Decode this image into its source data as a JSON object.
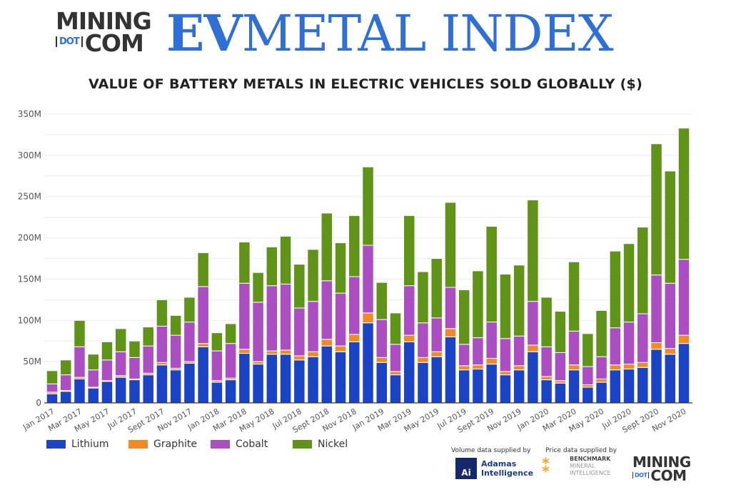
{
  "header": {
    "logo_line1": "MINING",
    "logo_dot": "DOT",
    "logo_line2": "COM",
    "ev": "EV",
    "metal_index": "METAL INDEX"
  },
  "chart_data": {
    "type": "bar",
    "stacked": true,
    "title": "VALUE OF BATTERY METALS IN ELECTRIC VEHICLES SOLD GLOBALLY ($)",
    "xlabel": "",
    "ylabel": "",
    "ylim": [
      0,
      350
    ],
    "y_unit": "M",
    "y_ticks": [
      "0",
      "50M",
      "100M",
      "150M",
      "200M",
      "250M",
      "300M",
      "350M"
    ],
    "grid": true,
    "legend_position": "bottom-left",
    "categories": [
      "Jan 2017",
      "Feb 2017",
      "Mar 2017",
      "Apr 2017",
      "May 2017",
      "Jun 2017",
      "Jul 2017",
      "Aug 2017",
      "Sept 2017",
      "Oct 2017",
      "Nov 2017",
      "Dec 2017",
      "Jan 2018",
      "Feb 2018",
      "Mar 2018",
      "Apr 2018",
      "May 2018",
      "Jun 2018",
      "Jul 2018",
      "Aug 2018",
      "Sept 2018",
      "Oct 2018",
      "Nov 2018",
      "Dec 2018",
      "Jan 2019",
      "Feb 2019",
      "Mar 2019",
      "Apr 2019",
      "May 2019",
      "Jun 2019",
      "Jul 2019",
      "Aug 2019",
      "Sept 2019",
      "Oct 2019",
      "Nov 2019",
      "Dec 2019",
      "Jan 2020",
      "Feb 2020",
      "Mar 2020",
      "Apr 2020",
      "May 2020",
      "Jun 2020",
      "Jul 2020",
      "Aug 2020",
      "Sept 2020",
      "Oct 2020",
      "Nov 2020"
    ],
    "x_tick_labels": [
      "Jan 2017",
      "Mar 2017",
      "May 2017",
      "Jul 2017",
      "Sept 2017",
      "Nov 2017",
      "Jan 2018",
      "Mar 2018",
      "May 2018",
      "Jul 2018",
      "Sept 2018",
      "Nov 2018",
      "Jan 2019",
      "Mar 2019",
      "May 2019",
      "Jul 2019",
      "Sept 2019",
      "Nov 2019",
      "Jan 2020",
      "Mar 2020",
      "May 2020",
      "Jul 2020",
      "Sept 2020",
      "Nov 2020"
    ],
    "series": [
      {
        "name": "Lithium",
        "color": "#1a44c4",
        "values": [
          11,
          14,
          29,
          18,
          26,
          31,
          28,
          34,
          46,
          40,
          48,
          68,
          25,
          28,
          60,
          47,
          59,
          59,
          52,
          56,
          69,
          62,
          74,
          97,
          49,
          34,
          74,
          49,
          56,
          80,
          40,
          41,
          47,
          34,
          40,
          62,
          28,
          24,
          40,
          19,
          25,
          40,
          41,
          43,
          65,
          59,
          72
        ]
      },
      {
        "name": "Graphite",
        "color": "#f08a24",
        "values": [
          2,
          1,
          2,
          1,
          1,
          2,
          1,
          2,
          3,
          2,
          2,
          4,
          2,
          2,
          5,
          3,
          4,
          5,
          5,
          6,
          8,
          7,
          9,
          12,
          6,
          4,
          8,
          6,
          6,
          10,
          5,
          5,
          7,
          4,
          5,
          8,
          4,
          3,
          6,
          3,
          4,
          6,
          6,
          6,
          8,
          7,
          10
        ]
      },
      {
        "name": "Cobalt",
        "color": "#ab4ec2",
        "values": [
          10,
          19,
          37,
          21,
          25,
          29,
          26,
          33,
          44,
          40,
          48,
          69,
          36,
          42,
          80,
          72,
          79,
          80,
          58,
          61,
          71,
          64,
          70,
          82,
          46,
          33,
          60,
          42,
          41,
          50,
          26,
          33,
          44,
          40,
          36,
          53,
          36,
          34,
          41,
          22,
          27,
          45,
          51,
          59,
          82,
          79,
          92
        ]
      },
      {
        "name": "Nickel",
        "color": "#5f9418",
        "values": [
          16,
          18,
          32,
          19,
          22,
          28,
          20,
          23,
          32,
          24,
          30,
          41,
          22,
          24,
          50,
          36,
          47,
          58,
          53,
          63,
          82,
          61,
          74,
          95,
          45,
          38,
          85,
          62,
          72,
          103,
          66,
          81,
          116,
          78,
          86,
          123,
          60,
          50,
          84,
          40,
          56,
          93,
          95,
          105,
          159,
          136,
          159
        ]
      }
    ]
  },
  "credits": {
    "volume_label": "Volume data supplied by",
    "price_label": "Price data supplied by",
    "adamas_icon": "Ai",
    "adamas_line1": "Adamas",
    "adamas_line2": "Intelligence",
    "benchmark_line1": "BENCHMARK",
    "benchmark_line2": "MINERAL",
    "benchmark_line3": "INTELLIGENCE",
    "mining_line1": "MINING",
    "mining_dot": "DOT",
    "mining_line2": "COM"
  }
}
